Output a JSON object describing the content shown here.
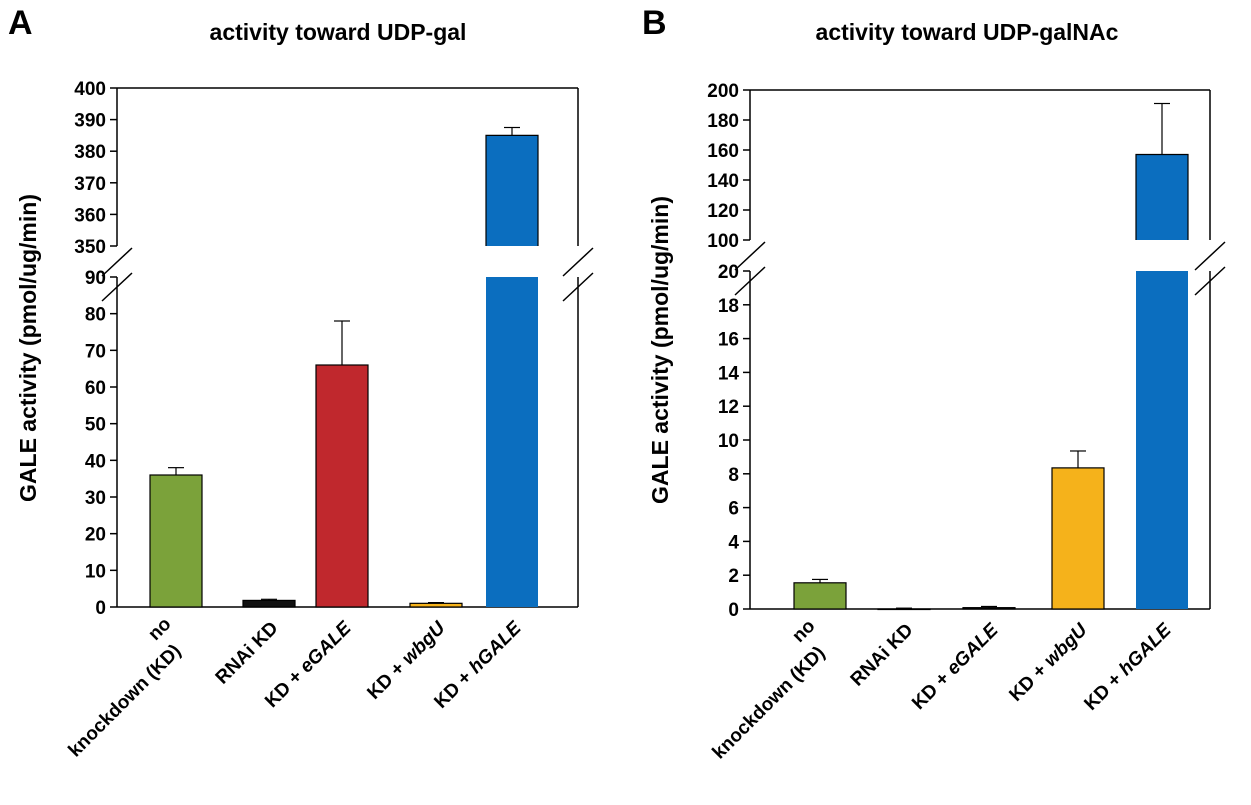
{
  "chart_data": [
    {
      "type": "bar",
      "panel_label": "A",
      "title": "activity toward UDP-gal",
      "ylabel": "GALE activity (pmol/ug/min)",
      "axis_break": true,
      "lower_ylim": [
        0,
        90
      ],
      "lower_ticks": [
        0,
        10,
        20,
        30,
        40,
        50,
        60,
        70,
        80,
        90
      ],
      "upper_ylim": [
        350,
        400
      ],
      "upper_ticks": [
        350,
        360,
        370,
        380,
        390,
        400
      ],
      "categories": [
        {
          "line1": "no",
          "line2": "knockdown (KD)"
        },
        {
          "line1": "RNAi KD",
          "line2": ""
        },
        {
          "prefix": "KD + ",
          "italic": "eGALE"
        },
        {
          "prefix": "KD + ",
          "italic": "wbgU"
        },
        {
          "prefix": "KD + ",
          "italic": "hGALE"
        }
      ],
      "values": [
        36,
        1.8,
        66,
        1.0,
        385
      ],
      "errors": [
        2,
        0.3,
        12,
        0.2,
        2.5
      ],
      "colors": [
        "#7ba23a",
        "#111111",
        "#c0282d",
        "#f5b21b",
        "#0b6ebf"
      ]
    },
    {
      "type": "bar",
      "panel_label": "B",
      "title": "activity toward UDP-galNAc",
      "ylabel": "GALE activity (pmol/ug/min)",
      "axis_break": true,
      "lower_ylim": [
        0,
        20
      ],
      "lower_ticks": [
        0,
        2,
        4,
        6,
        8,
        10,
        12,
        14,
        16,
        18,
        20
      ],
      "upper_ylim": [
        100,
        200
      ],
      "upper_ticks": [
        100,
        120,
        140,
        160,
        180,
        200
      ],
      "categories": [
        {
          "line1": "no",
          "line2": "knockdown (KD)"
        },
        {
          "line1": "RNAi KD",
          "line2": ""
        },
        {
          "prefix": "KD + ",
          "italic": "eGALE"
        },
        {
          "prefix": "KD + ",
          "italic": "wbgU"
        },
        {
          "prefix": "KD + ",
          "italic": "hGALE"
        }
      ],
      "values": [
        1.55,
        0.0,
        0.08,
        8.35,
        157
      ],
      "errors": [
        0.2,
        0.05,
        0.07,
        1.0,
        34
      ],
      "colors": [
        "#7ba23a",
        "#111111",
        "#111111",
        "#f5b21b",
        "#0b6ebf"
      ]
    }
  ]
}
